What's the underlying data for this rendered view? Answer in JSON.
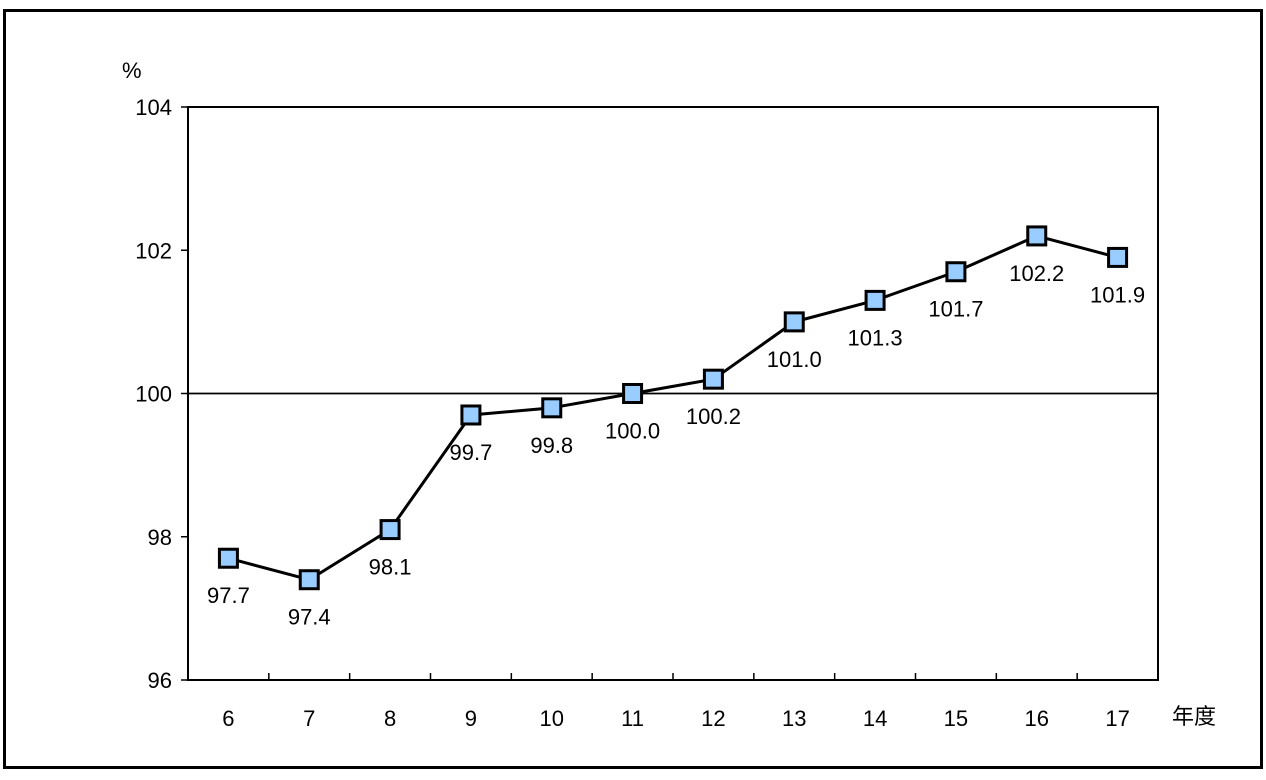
{
  "chart_data": {
    "type": "line",
    "title": "",
    "xlabel": "年度",
    "ylabel": "%",
    "categories": [
      "6",
      "7",
      "8",
      "9",
      "10",
      "11",
      "12",
      "13",
      "14",
      "15",
      "16",
      "17"
    ],
    "values": [
      97.7,
      97.4,
      98.1,
      99.7,
      99.8,
      100.0,
      100.2,
      101.0,
      101.3,
      101.7,
      102.2,
      101.9
    ],
    "data_labels": [
      "97.7",
      "97.4",
      "98.1",
      "99.7",
      "99.8",
      "100.0",
      "100.2",
      "101.0",
      "101.3",
      "101.7",
      "102.2",
      "101.9"
    ],
    "ylim": [
      96,
      104
    ],
    "yticks": [
      96,
      98,
      100,
      102,
      104
    ],
    "ytick_labels": [
      "96",
      "98",
      "100",
      "102",
      "104"
    ],
    "reference_line": 100,
    "grid": false,
    "legend": "none",
    "colors": {
      "marker_fill": "#99CCFF",
      "marker_stroke": "#000000",
      "line": "#000000",
      "axis": "#000000"
    }
  }
}
